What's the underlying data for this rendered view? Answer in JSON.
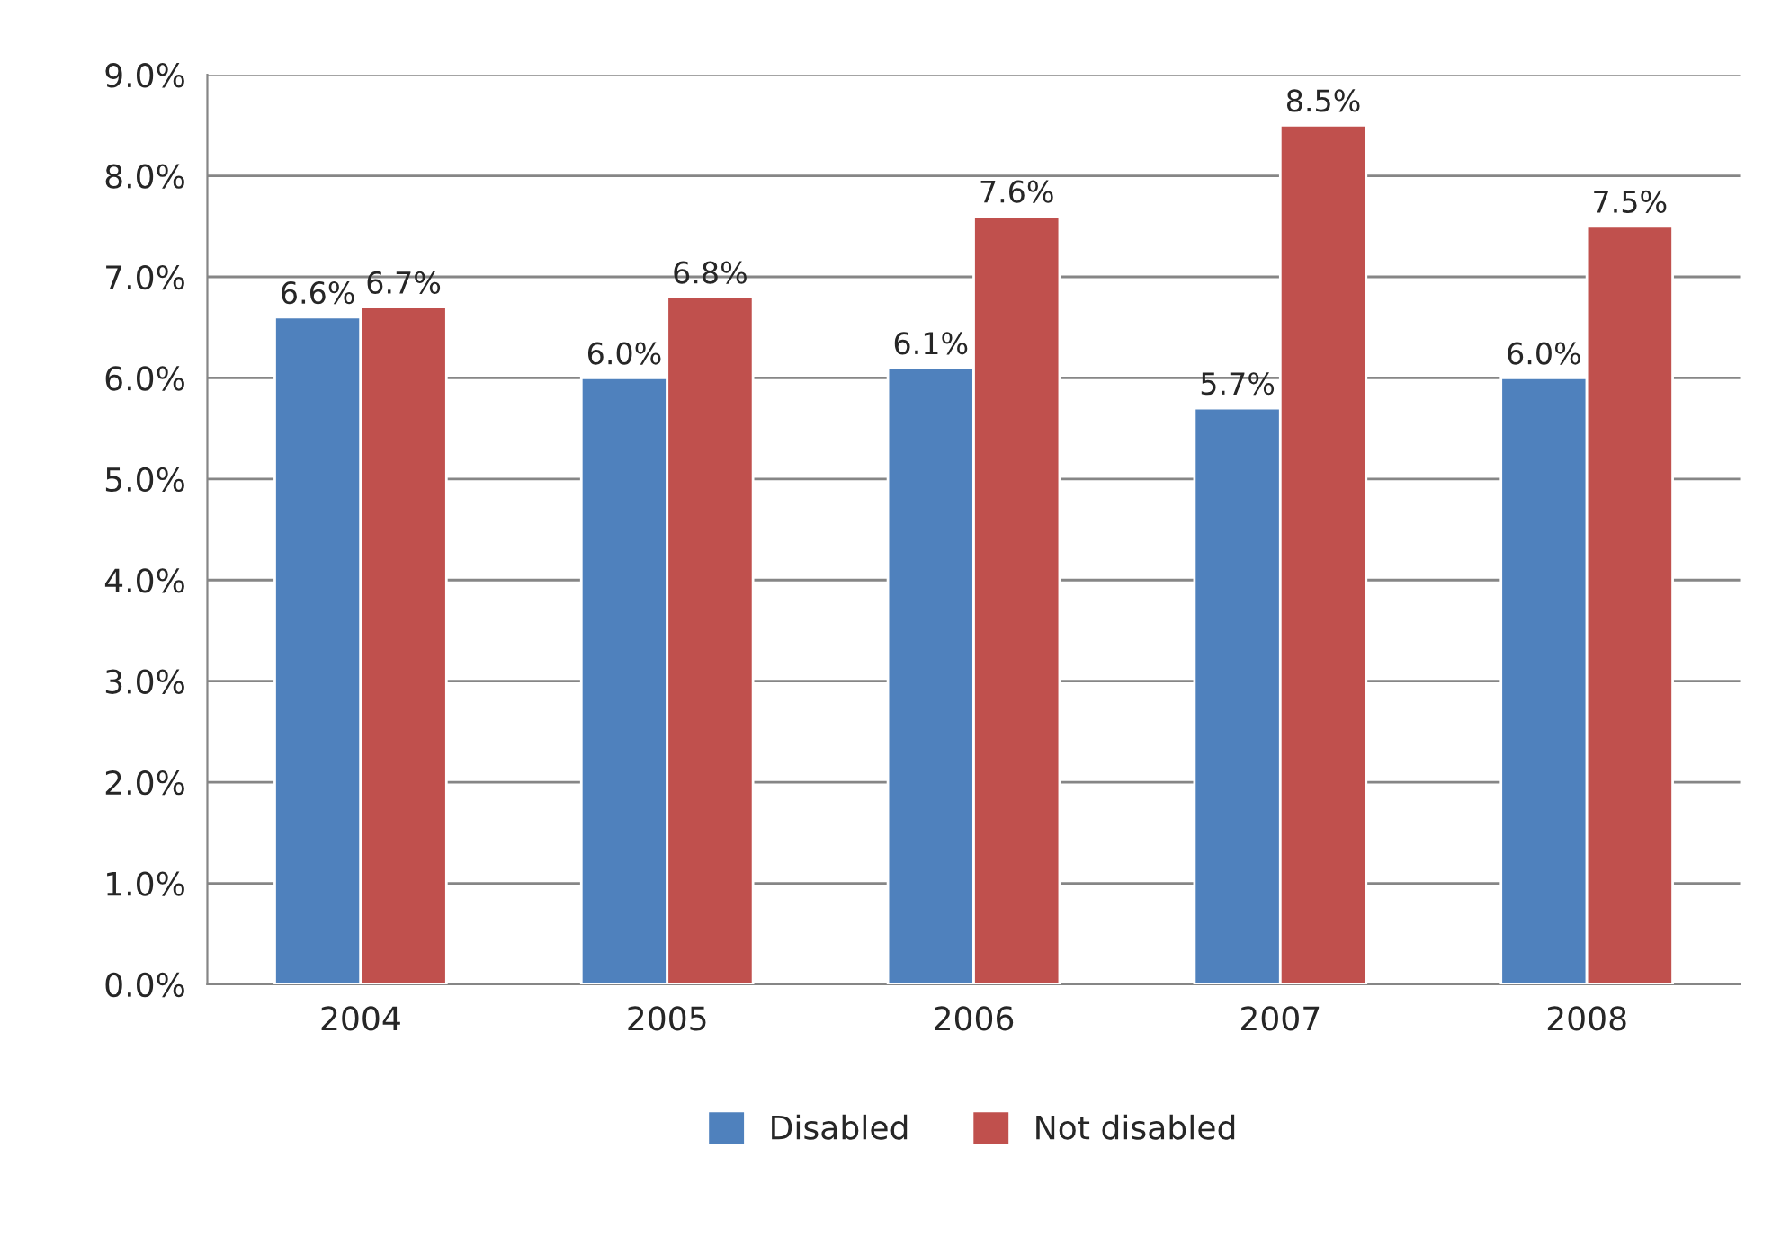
{
  "chart_data": {
    "type": "bar",
    "categories": [
      "2004",
      "2005",
      "2006",
      "2007",
      "2008"
    ],
    "series": [
      {
        "name": "Disabled",
        "color": "#4f81bd",
        "values": [
          6.6,
          6.0,
          6.1,
          5.7,
          6.0
        ],
        "value_labels": [
          "6.6%",
          "6.0%",
          "6.1%",
          "5.7%",
          "6.0%"
        ]
      },
      {
        "name": "Not disabled",
        "color": "#c0504d",
        "values": [
          6.7,
          6.8,
          7.6,
          8.5,
          7.5
        ],
        "value_labels": [
          "6.7%",
          "6.8%",
          "7.6%",
          "8.5%",
          "7.5%"
        ]
      }
    ],
    "ylim": [
      0,
      9
    ],
    "yticks": [
      {
        "value": 0,
        "label": "0.0%"
      },
      {
        "value": 1,
        "label": "1.0%"
      },
      {
        "value": 2,
        "label": "2.0%"
      },
      {
        "value": 3,
        "label": "3.0%"
      },
      {
        "value": 4,
        "label": "4.0%"
      },
      {
        "value": 5,
        "label": "5.0%"
      },
      {
        "value": 6,
        "label": "6.0%"
      },
      {
        "value": 7,
        "label": "7.0%"
      },
      {
        "value": 8,
        "label": "8.0%"
      },
      {
        "value": 9,
        "label": "9.0%"
      }
    ],
    "grid": "y",
    "legend": "bottom"
  }
}
